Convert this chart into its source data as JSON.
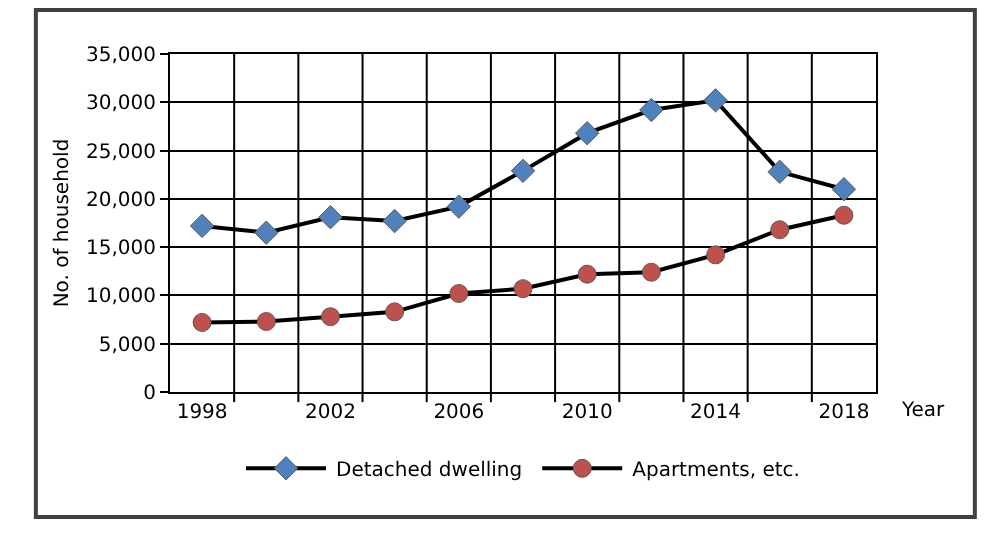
{
  "chart_data": {
    "type": "line",
    "xlabel": "Year",
    "ylabel": "No. of household",
    "x": [
      1998,
      2000,
      2002,
      2004,
      2006,
      2008,
      2010,
      2012,
      2014,
      2016,
      2018
    ],
    "series": [
      {
        "name": "Detached dwelling",
        "color": "#4f81bd",
        "marker": "diamond",
        "values": [
          17200,
          16500,
          18100,
          17700,
          19200,
          22900,
          26800,
          29200,
          30200,
          22800,
          21000
        ]
      },
      {
        "name": "Apartments, etc.",
        "color": "#c0504d",
        "marker": "circle",
        "values": [
          7200,
          7300,
          7800,
          8300,
          10200,
          10700,
          12200,
          12400,
          14200,
          16800,
          18300
        ]
      }
    ],
    "xlim": [
      1997,
      2019
    ],
    "xticks": [
      1998,
      2002,
      2006,
      2010,
      2014,
      2018,
      {
        "value": 1999,
        "label": null
      },
      {
        "value": 2001,
        "label": null
      },
      {
        "value": 2003,
        "label": null
      },
      {
        "value": 2005,
        "label": null
      },
      {
        "value": 2007,
        "label": null
      },
      {
        "value": 2009,
        "label": null
      },
      {
        "value": 2011,
        "label": null
      },
      {
        "value": 2013,
        "label": null
      },
      {
        "value": 2015,
        "label": null
      },
      {
        "value": 2017,
        "label": null
      }
    ],
    "ylim": [
      0,
      35000
    ],
    "yticks": [
      {
        "value": 0,
        "label": "0"
      },
      {
        "value": 5000,
        "label": "5,000"
      },
      {
        "value": 10000,
        "label": "10,000"
      },
      {
        "value": 15000,
        "label": "15,000"
      },
      {
        "value": 20000,
        "label": "20,000"
      },
      {
        "value": 25000,
        "label": "25,000"
      },
      {
        "value": 30000,
        "label": "30,000"
      },
      {
        "value": 35000,
        "label": "35,000"
      }
    ],
    "grid": true,
    "legend": "bottom",
    "line_style": "solid"
  }
}
